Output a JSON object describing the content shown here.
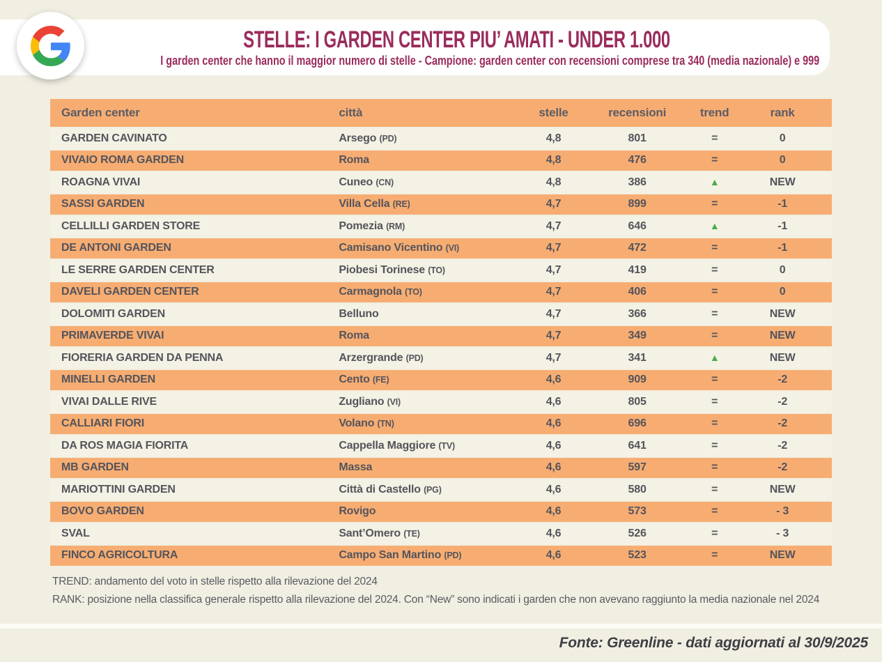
{
  "header": {
    "logo": "google-logo",
    "title": "STELLE: I GARDEN CENTER PIU’ AMATI - UNDER 1.000",
    "subtitle": "I garden center che hanno il maggior numero di stelle - Campione: garden center con recensioni comprese tra 340 (media nazionale) e 999"
  },
  "table": {
    "columns": [
      "Garden center",
      "città",
      "stelle",
      "recensioni",
      "trend",
      "rank"
    ],
    "rows": [
      {
        "name": "GARDEN CAVINATO",
        "city": "Arsego",
        "prov": "PD",
        "stars": "4,8",
        "reviews": "801",
        "trend": "equal",
        "rank": "0"
      },
      {
        "name": "VIVAIO ROMA GARDEN",
        "city": "Roma",
        "prov": "",
        "stars": "4,8",
        "reviews": "476",
        "trend": "equal",
        "rank": "0"
      },
      {
        "name": "ROAGNA VIVAI",
        "city": "Cuneo",
        "prov": "CN",
        "stars": "4,8",
        "reviews": "386",
        "trend": "up",
        "rank": "NEW"
      },
      {
        "name": "SASSI GARDEN",
        "city": "Villa Cella",
        "prov": "RE",
        "stars": "4,7",
        "reviews": "899",
        "trend": "equal",
        "rank": "-1"
      },
      {
        "name": "CELLILLI GARDEN STORE",
        "city": "Pomezia",
        "prov": "RM",
        "stars": "4,7",
        "reviews": "646",
        "trend": "up",
        "rank": "-1"
      },
      {
        "name": "DE ANTONI GARDEN",
        "city": "Camisano Vicentino",
        "prov": "VI",
        "stars": "4,7",
        "reviews": "472",
        "trend": "equal",
        "rank": "-1"
      },
      {
        "name": "LE SERRE GARDEN CENTER",
        "city": "Piobesi Torinese",
        "prov": "TO",
        "stars": "4,7",
        "reviews": "419",
        "trend": "equal",
        "rank": "0"
      },
      {
        "name": "DAVELI GARDEN CENTER",
        "city": "Carmagnola",
        "prov": "TO",
        "stars": "4,7",
        "reviews": "406",
        "trend": "equal",
        "rank": "0"
      },
      {
        "name": "DOLOMITI GARDEN",
        "city": "Belluno",
        "prov": "",
        "stars": "4,7",
        "reviews": "366",
        "trend": "equal",
        "rank": "NEW"
      },
      {
        "name": "PRIMAVERDE VIVAI",
        "city": "Roma",
        "prov": "",
        "stars": "4,7",
        "reviews": "349",
        "trend": "equal",
        "rank": "NEW"
      },
      {
        "name": "FIORERIA GARDEN DA PENNA",
        "city": "Arzergrande",
        "prov": "PD",
        "stars": "4,7",
        "reviews": "341",
        "trend": "up",
        "rank": "NEW"
      },
      {
        "name": "MINELLI GARDEN",
        "city": "Cento",
        "prov": "FE",
        "stars": "4,6",
        "reviews": "909",
        "trend": "equal",
        "rank": "-2"
      },
      {
        "name": "VIVAI DALLE RIVE",
        "city": "Zugliano",
        "prov": "VI",
        "stars": "4,6",
        "reviews": "805",
        "trend": "equal",
        "rank": "-2"
      },
      {
        "name": "CALLIARI FIORI",
        "city": "Volano",
        "prov": "TN",
        "stars": "4,6",
        "reviews": "696",
        "trend": "equal",
        "rank": "-2"
      },
      {
        "name": "DA ROS MAGIA FIORITA",
        "city": "Cappella Maggiore",
        "prov": "TV",
        "stars": "4,6",
        "reviews": "641",
        "trend": "equal",
        "rank": "-2"
      },
      {
        "name": "MB GARDEN",
        "city": "Massa",
        "prov": "",
        "stars": "4,6",
        "reviews": "597",
        "trend": "equal",
        "rank": "-2"
      },
      {
        "name": "MARIOTTINI GARDEN",
        "city": "Città di Castello",
        "prov": "PG",
        "stars": "4,6",
        "reviews": "580",
        "trend": "equal",
        "rank": "NEW"
      },
      {
        "name": "BOVO GARDEN",
        "city": "Rovigo",
        "prov": "",
        "stars": "4,6",
        "reviews": "573",
        "trend": "equal",
        "rank": "- 3"
      },
      {
        "name": "SVAL",
        "city": "Sant’Omero",
        "prov": "TE",
        "stars": "4,6",
        "reviews": "526",
        "trend": "equal",
        "rank": "- 3"
      },
      {
        "name": "FINCO AGRICOLTURA",
        "city": "Campo San Martino",
        "prov": "PD",
        "stars": "4,6",
        "reviews": "523",
        "trend": "equal",
        "rank": "NEW"
      }
    ]
  },
  "icons": {
    "trend_up": "▲",
    "trend_equal": "="
  },
  "notes": {
    "trend": "TREND: andamento del voto in stelle rispetto alla rilevazione del 2024",
    "rank": "RANK: posizione nella classifica generale rispetto alla rilevazione del 2024. Con “New” sono indicati i garden che non avevano raggiunto la media nazionale nel 2024"
  },
  "footer": {
    "source": "Fonte: Greenline - dati aggiornati al 30/9/2025"
  },
  "colors": {
    "page_bg": "#f1efe2",
    "accent_burgundy": "#9a2c5c",
    "row_orange": "#f7ad72",
    "row_cream": "#f4f2e4",
    "text_dark": "#54545c",
    "trend_up_green": "#4aab4a",
    "google_red": "#EA4335",
    "google_blue": "#4285F4",
    "google_yellow": "#FBBC05",
    "google_green": "#34A853"
  }
}
